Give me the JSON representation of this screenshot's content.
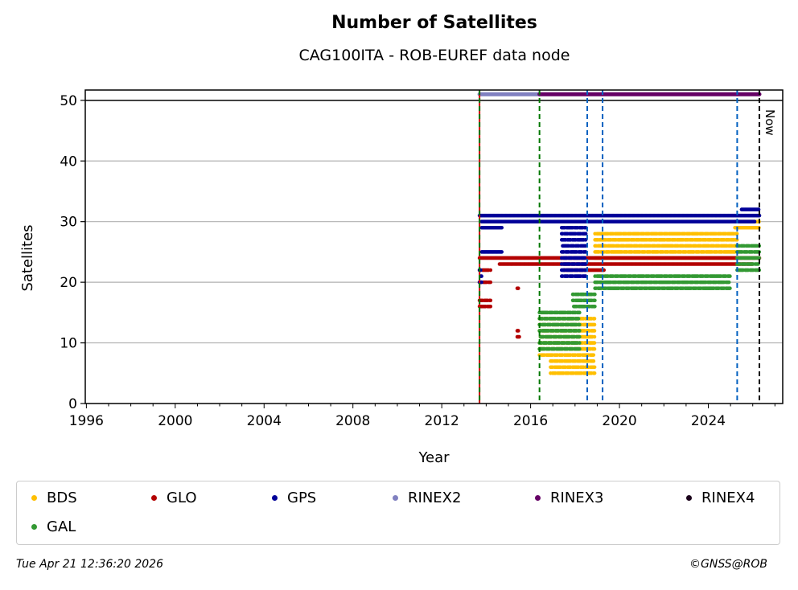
{
  "chart_data": {
    "type": "scatter",
    "title": "Number of Satellites",
    "subtitle": "CAG100ITA - ROB-EUREF data node",
    "xlabel": "Year",
    "ylabel": "Satellites",
    "xlim": [
      1995.95,
      2027.35
    ],
    "ylim": [
      0,
      51.7
    ],
    "xticks": [
      1996,
      2000,
      2004,
      2008,
      2012,
      2016,
      2020,
      2024
    ],
    "yticks": [
      0,
      10,
      20,
      30,
      40,
      50
    ],
    "grid": "y",
    "now_label": "Now",
    "vlines": [
      {
        "x": 2013.7,
        "color": "#cc0000",
        "style": "solid"
      },
      {
        "x": 2013.7,
        "color": "#007700",
        "style": "dashed"
      },
      {
        "x": 2016.4,
        "color": "#007700",
        "style": "dashed"
      },
      {
        "x": 2018.55,
        "color": "#0060c0",
        "style": "dashed"
      },
      {
        "x": 2019.24,
        "color": "#0060c0",
        "style": "dashed"
      },
      {
        "x": 2025.3,
        "color": "#0060c0",
        "style": "dashed"
      },
      {
        "x": 2026.3,
        "color": "#000000",
        "style": "dashed"
      }
    ],
    "rinex_bars": [
      {
        "name": "RINEX2",
        "x0": 2013.7,
        "x1": 2016.4,
        "y": 51,
        "color": "#8080c0"
      },
      {
        "name": "RINEX3",
        "x0": 2016.4,
        "x1": 2026.3,
        "y": 51,
        "color": "#660066"
      }
    ],
    "series": [
      {
        "name": "BDS",
        "color": "#ffbf00",
        "bands": [
          [
            2016.4,
            2018.9,
            [
              8,
              9,
              10,
              11,
              12,
              13,
              14
            ]
          ],
          [
            2016.9,
            2018.9,
            [
              5,
              6,
              7
            ]
          ],
          [
            2018.9,
            2025.3,
            [
              25,
              26,
              27,
              28
            ]
          ],
          [
            2018.9,
            2025.3,
            [
              24
            ]
          ],
          [
            2025.2,
            2026.3,
            [
              29,
              30
            ]
          ]
        ]
      },
      {
        "name": "GLO",
        "color": "#b30000",
        "bands": [
          [
            2013.7,
            2026.3,
            [
              24
            ]
          ],
          [
            2014.6,
            2026.0,
            [
              23
            ]
          ],
          [
            2017.5,
            2019.3,
            [
              22
            ]
          ],
          [
            2013.7,
            2014.2,
            [
              22,
              20,
              17,
              16
            ]
          ],
          [
            2015.4,
            2015.5,
            [
              19,
              12,
              11
            ]
          ]
        ]
      },
      {
        "name": "GPS",
        "color": "#000099",
        "bands": [
          [
            2013.7,
            2026.3,
            [
              31
            ]
          ],
          [
            2013.8,
            2026.1,
            [
              30
            ]
          ],
          [
            2017.4,
            2018.5,
            [
              29,
              28,
              27,
              26,
              25,
              24,
              23,
              22,
              21
            ]
          ],
          [
            2013.8,
            2014.7,
            [
              29,
              25
            ]
          ],
          [
            2025.5,
            2026.3,
            [
              32
            ]
          ],
          [
            2013.7,
            2013.8,
            [
              22,
              21,
              20
            ]
          ]
        ]
      },
      {
        "name": "GAL",
        "color": "#339933",
        "bands": [
          [
            2016.4,
            2018.2,
            [
              15,
              14,
              13,
              12,
              11,
              10,
              9
            ]
          ],
          [
            2017.9,
            2018.9,
            [
              16,
              17,
              18
            ]
          ],
          [
            2018.9,
            2025.0,
            [
              19,
              20,
              21
            ]
          ],
          [
            2025.3,
            2026.3,
            [
              22,
              23,
              24,
              25,
              26
            ]
          ]
        ]
      },
      {
        "name": "RINEX2",
        "color": "#8080c0",
        "bands": []
      },
      {
        "name": "RINEX3",
        "color": "#660066",
        "bands": []
      },
      {
        "name": "RINEX4",
        "color": "#1a001a",
        "bands": []
      }
    ],
    "legend": "bottom"
  },
  "footer": {
    "timestamp": "Tue Apr 21 12:36:20 2026",
    "credit": "©GNSS@ROB"
  }
}
